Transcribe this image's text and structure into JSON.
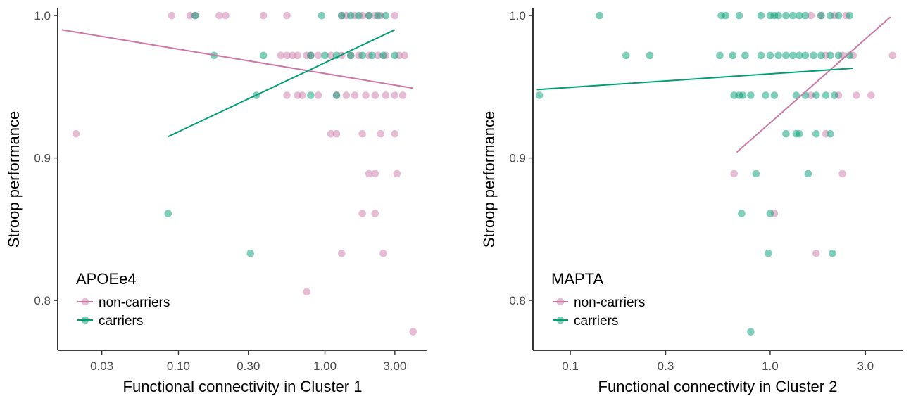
{
  "chart_data": [
    {
      "type": "scatter",
      "xlabel": "Functional connectivity in Cluster 1",
      "ylabel": "Stroop performance",
      "x_scale": "log10",
      "xlim": [
        0.015,
        5.0
      ],
      "ylim": [
        0.765,
        1.005
      ],
      "x_ticks": [
        0.03,
        0.1,
        0.3,
        1.0,
        3.0
      ],
      "x_tick_labels": [
        "0.03",
        "0.10",
        "0.30",
        "1.00",
        "3.00"
      ],
      "y_ticks": [
        0.8,
        0.9,
        1.0
      ],
      "y_tick_labels": [
        "0.8",
        "0.9",
        "1.0"
      ],
      "grid": false,
      "legend": {
        "title": "APOEe4",
        "position": "bottom-left",
        "entries": [
          "non-carriers",
          "carriers"
        ]
      },
      "series": [
        {
          "name": "non-carriers",
          "color": "#CC79A7",
          "points": [
            [
              0.02,
              0.917
            ],
            [
              0.09,
              1.0
            ],
            [
              0.12,
              1.0
            ],
            [
              0.13,
              1.0
            ],
            [
              0.19,
              1.0
            ],
            [
              0.21,
              1.0
            ],
            [
              0.38,
              1.0
            ],
            [
              0.55,
              1.0
            ],
            [
              1.3,
              1.0
            ],
            [
              1.4,
              1.0
            ],
            [
              1.6,
              1.0
            ],
            [
              1.8,
              1.0
            ],
            [
              2.0,
              1.0
            ],
            [
              2.2,
              1.0
            ],
            [
              2.4,
              1.0
            ],
            [
              3.0,
              1.0
            ],
            [
              0.5,
              0.972
            ],
            [
              0.55,
              0.972
            ],
            [
              0.6,
              0.972
            ],
            [
              0.65,
              0.972
            ],
            [
              0.75,
              0.972
            ],
            [
              0.8,
              0.972
            ],
            [
              0.9,
              0.972
            ],
            [
              1.1,
              0.972
            ],
            [
              1.3,
              0.972
            ],
            [
              1.5,
              0.972
            ],
            [
              1.7,
              0.972
            ],
            [
              2.0,
              0.972
            ],
            [
              2.3,
              0.972
            ],
            [
              2.6,
              0.972
            ],
            [
              3.2,
              0.972
            ],
            [
              3.5,
              0.972
            ],
            [
              0.55,
              0.944
            ],
            [
              0.65,
              0.944
            ],
            [
              0.7,
              0.944
            ],
            [
              0.9,
              0.944
            ],
            [
              1.2,
              0.944
            ],
            [
              1.4,
              0.944
            ],
            [
              1.6,
              0.944
            ],
            [
              1.9,
              0.944
            ],
            [
              2.2,
              0.944
            ],
            [
              2.6,
              0.944
            ],
            [
              3.0,
              0.944
            ],
            [
              3.4,
              0.944
            ],
            [
              1.1,
              0.917
            ],
            [
              1.2,
              0.917
            ],
            [
              1.8,
              0.917
            ],
            [
              2.4,
              0.917
            ],
            [
              3.0,
              0.917
            ],
            [
              2.0,
              0.889
            ],
            [
              2.2,
              0.889
            ],
            [
              3.1,
              0.889
            ],
            [
              1.8,
              0.861
            ],
            [
              2.2,
              0.861
            ],
            [
              1.3,
              0.833
            ],
            [
              2.5,
              0.833
            ],
            [
              0.75,
              0.806
            ],
            [
              4.0,
              0.778
            ]
          ],
          "fit": [
            [
              0.016,
              0.99
            ],
            [
              4.0,
              0.949
            ]
          ]
        },
        {
          "name": "carriers",
          "color": "#009E73",
          "points": [
            [
              0.13,
              1.0
            ],
            [
              0.95,
              1.0
            ],
            [
              1.3,
              1.0
            ],
            [
              1.5,
              1.0
            ],
            [
              1.7,
              1.0
            ],
            [
              2.0,
              1.0
            ],
            [
              2.3,
              1.0
            ],
            [
              2.6,
              1.0
            ],
            [
              0.38,
              0.972
            ],
            [
              0.8,
              0.972
            ],
            [
              1.0,
              0.972
            ],
            [
              1.2,
              0.972
            ],
            [
              1.5,
              0.972
            ],
            [
              1.8,
              0.972
            ],
            [
              2.1,
              0.972
            ],
            [
              2.5,
              0.972
            ],
            [
              3.0,
              0.972
            ],
            [
              0.34,
              0.944
            ],
            [
              0.8,
              0.944
            ],
            [
              1.2,
              0.944
            ],
            [
              0.175,
              0.972
            ],
            [
              0.085,
              0.861
            ],
            [
              0.31,
              0.833
            ]
          ],
          "fit": [
            [
              0.085,
              0.915
            ],
            [
              3.0,
              0.99
            ]
          ]
        }
      ]
    },
    {
      "type": "scatter",
      "xlabel": "Functional connectivity in Cluster 2",
      "ylabel": "Stroop performance",
      "x_scale": "log10",
      "xlim": [
        0.065,
        4.6
      ],
      "ylim": [
        0.765,
        1.005
      ],
      "x_ticks": [
        0.1,
        0.3,
        1.0,
        3.0
      ],
      "x_tick_labels": [
        "0.1",
        "0.3",
        "1.0",
        "3.0"
      ],
      "y_ticks": [
        0.8,
        0.9,
        1.0
      ],
      "y_tick_labels": [
        "0.8",
        "0.9",
        "1.0"
      ],
      "grid": false,
      "legend": {
        "title": "MAPTA",
        "position": "bottom-left",
        "entries": [
          "non-carriers",
          "carriers"
        ]
      },
      "series": [
        {
          "name": "non-carriers",
          "color": "#CC79A7",
          "points": [
            [
              1.6,
              1.0
            ],
            [
              1.8,
              1.0
            ],
            [
              2.1,
              1.0
            ],
            [
              2.4,
              1.0
            ],
            [
              1.9,
              0.972
            ],
            [
              2.3,
              0.972
            ],
            [
              2.6,
              0.972
            ],
            [
              4.1,
              0.972
            ],
            [
              1.6,
              0.944
            ],
            [
              2.2,
              0.944
            ],
            [
              2.7,
              0.944
            ],
            [
              3.2,
              0.944
            ],
            [
              1.9,
              0.917
            ],
            [
              0.66,
              0.889
            ],
            [
              2.3,
              0.889
            ],
            [
              1.05,
              0.861
            ],
            [
              1.7,
              0.833
            ]
          ],
          "fit": [
            [
              0.68,
              0.904
            ],
            [
              4.0,
              0.999
            ]
          ]
        },
        {
          "name": "carriers",
          "color": "#009E73",
          "points": [
            [
              0.14,
              1.0
            ],
            [
              0.57,
              1.0
            ],
            [
              0.6,
              1.0
            ],
            [
              0.7,
              1.0
            ],
            [
              0.9,
              1.0
            ],
            [
              1.0,
              1.0
            ],
            [
              1.05,
              1.0
            ],
            [
              1.1,
              1.0
            ],
            [
              1.2,
              1.0
            ],
            [
              1.3,
              1.0
            ],
            [
              1.4,
              1.0
            ],
            [
              1.5,
              1.0
            ],
            [
              1.8,
              1.0
            ],
            [
              2.0,
              1.0
            ],
            [
              2.2,
              1.0
            ],
            [
              2.5,
              1.0
            ],
            [
              0.19,
              0.972
            ],
            [
              0.25,
              0.972
            ],
            [
              0.56,
              0.972
            ],
            [
              0.65,
              0.972
            ],
            [
              0.75,
              0.972
            ],
            [
              0.9,
              0.972
            ],
            [
              1.0,
              0.972
            ],
            [
              1.1,
              0.972
            ],
            [
              1.2,
              0.972
            ],
            [
              1.3,
              0.972
            ],
            [
              1.4,
              0.972
            ],
            [
              1.5,
              0.972
            ],
            [
              1.65,
              0.972
            ],
            [
              1.8,
              0.972
            ],
            [
              2.0,
              0.972
            ],
            [
              2.2,
              0.972
            ],
            [
              2.5,
              0.972
            ],
            [
              0.07,
              0.944
            ],
            [
              0.66,
              0.944
            ],
            [
              0.7,
              0.944
            ],
            [
              0.73,
              0.944
            ],
            [
              0.8,
              0.944
            ],
            [
              0.95,
              0.944
            ],
            [
              1.05,
              0.944
            ],
            [
              1.35,
              0.944
            ],
            [
              1.5,
              0.944
            ],
            [
              1.7,
              0.944
            ],
            [
              1.9,
              0.944
            ],
            [
              2.1,
              0.944
            ],
            [
              1.2,
              0.917
            ],
            [
              1.35,
              0.917
            ],
            [
              1.4,
              0.917
            ],
            [
              1.7,
              0.917
            ],
            [
              2.0,
              0.917
            ],
            [
              0.85,
              0.889
            ],
            [
              1.55,
              0.889
            ],
            [
              0.72,
              0.861
            ],
            [
              1.0,
              0.861
            ],
            [
              0.98,
              0.833
            ],
            [
              2.05,
              0.833
            ],
            [
              0.8,
              0.778
            ]
          ],
          "fit": [
            [
              0.068,
              0.948
            ],
            [
              2.6,
              0.963
            ]
          ]
        }
      ]
    }
  ]
}
